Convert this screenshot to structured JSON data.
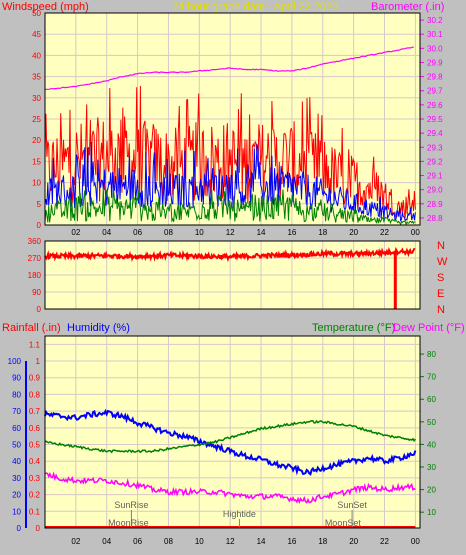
{
  "header": {
    "windspeed_label": "Windspeed (mph)",
    "title": "24 hour graph date : April 22 2020",
    "barometer_label": "Barometer (.in)"
  },
  "lower_header": {
    "rainfall_label": "Rainfall (.in)",
    "humidity_label": "Humidity (%)",
    "temperature_label": "Temperature (°F)",
    "dewpoint_label": "Dew Point (°F)"
  },
  "compass": [
    "N",
    "W",
    "S",
    "E",
    "N"
  ],
  "events": {
    "sunrise": "SunRise",
    "moonrise": "MoonRise",
    "hightide": "Hightide",
    "sunset": "SunSet",
    "moonset": "MoonSet"
  },
  "colors": {
    "plot_bg": "#ffffc0",
    "frame_bg": "#c0c0c0",
    "gust": "#ff0000",
    "wind_avg": "#0000ff",
    "wind_min": "#008000",
    "barometer": "#ff00ff",
    "rainfall": "#ff0000",
    "humidity": "#0000ff",
    "temperature": "#008000",
    "dewpoint": "#ff00ff",
    "title": "#e0e000"
  },
  "chart_data": [
    {
      "type": "line",
      "name": "wind-barometer",
      "x_ticks": [
        "02",
        "04",
        "06",
        "08",
        "10",
        "12",
        "14",
        "16",
        "18",
        "20",
        "22",
        "00"
      ],
      "y_left_ticks": [
        0,
        5,
        10,
        15,
        20,
        25,
        30,
        35,
        40,
        45,
        50
      ],
      "ylim_left": [
        0,
        50
      ],
      "y_right_ticks": [
        28.8,
        28.9,
        29.0,
        29.1,
        29.2,
        29.3,
        29.4,
        29.5,
        29.6,
        29.7,
        29.8,
        29.9,
        30.0,
        30.1,
        30.2
      ],
      "ylim_right": [
        28.75,
        30.25
      ],
      "xlim_hours": [
        0,
        24.3
      ],
      "grid": true,
      "series": [
        {
          "key": "gust",
          "axis": "left",
          "x": [
            0,
            1,
            2,
            3,
            4,
            5,
            6,
            7,
            8,
            9,
            10,
            11,
            12,
            13,
            14,
            15,
            16,
            17,
            18,
            19,
            20,
            21,
            22,
            23,
            24
          ],
          "y": [
            13,
            14,
            15,
            15,
            16,
            16,
            15,
            15,
            14,
            14,
            15,
            15,
            15,
            14,
            15,
            15,
            15,
            14,
            13,
            11,
            10,
            9,
            7,
            4,
            5
          ]
        },
        {
          "key": "wind_avg",
          "axis": "left",
          "x": [
            0,
            1,
            2,
            3,
            4,
            5,
            6,
            7,
            8,
            9,
            10,
            11,
            12,
            13,
            14,
            15,
            16,
            17,
            18,
            19,
            20,
            21,
            22,
            23,
            24
          ],
          "y": [
            7,
            8,
            8,
            9,
            9,
            9,
            9,
            8,
            8,
            8,
            9,
            9,
            9,
            8,
            9,
            9,
            9,
            8,
            7,
            6,
            5,
            4,
            3,
            2,
            2
          ]
        },
        {
          "key": "wind_min",
          "axis": "left",
          "x": [
            0,
            1,
            2,
            3,
            4,
            5,
            6,
            7,
            8,
            9,
            10,
            11,
            12,
            13,
            14,
            15,
            16,
            17,
            18,
            19,
            20,
            21,
            22,
            23,
            24
          ],
          "y": [
            3,
            3,
            4,
            4,
            4,
            4,
            4,
            3,
            3,
            3,
            4,
            4,
            4,
            3,
            4,
            4,
            4,
            3,
            3,
            2,
            2,
            1,
            1,
            0.5,
            0.5
          ]
        },
        {
          "key": "barometer",
          "axis": "right",
          "x": [
            0,
            1,
            2,
            3,
            4,
            5,
            6,
            7,
            8,
            9,
            10,
            11,
            12,
            13,
            14,
            15,
            16,
            17,
            18,
            19,
            20,
            21,
            22,
            23,
            24
          ],
          "y": [
            29.71,
            29.72,
            29.73,
            29.75,
            29.77,
            29.8,
            29.82,
            29.83,
            29.83,
            29.83,
            29.84,
            29.85,
            29.86,
            29.85,
            29.85,
            29.84,
            29.84,
            29.86,
            29.89,
            29.91,
            29.93,
            29.95,
            29.97,
            29.99,
            30.01
          ]
        }
      ]
    },
    {
      "type": "line",
      "name": "wind-direction",
      "x_ticks": [
        "02",
        "04",
        "06",
        "08",
        "10",
        "12",
        "14",
        "16",
        "18",
        "20",
        "22",
        "00"
      ],
      "y_ticks": [
        0,
        90,
        180,
        270,
        360
      ],
      "ylim": [
        0,
        360
      ],
      "xlim_hours": [
        0,
        24.3
      ],
      "grid": true,
      "series": [
        {
          "key": "direction",
          "x": [
            0,
            2,
            4,
            6,
            8,
            10,
            12,
            14,
            16,
            18,
            20,
            22,
            23,
            23.7,
            24
          ],
          "y": [
            280,
            280,
            282,
            278,
            284,
            280,
            276,
            282,
            286,
            292,
            292,
            298,
            306,
            300,
            320
          ]
        }
      ],
      "spike": {
        "x": 22.7,
        "y": 0
      }
    },
    {
      "type": "line",
      "name": "humidity-temperature",
      "x_ticks": [
        "02",
        "04",
        "06",
        "08",
        "10",
        "12",
        "14",
        "16",
        "18",
        "20",
        "22",
        "00"
      ],
      "y_left_ticks": [
        0,
        0.1,
        0.2,
        0.3,
        0.4,
        0.5,
        0.6,
        0.7,
        0.8,
        0.9,
        1.0,
        1.1
      ],
      "y_humidity_ticks": [
        0,
        10,
        20,
        30,
        40,
        50,
        60,
        70,
        80,
        90,
        100
      ],
      "ylim_humidity": [
        0,
        115
      ],
      "y_right_ticks": [
        10,
        20,
        30,
        40,
        50,
        60,
        70,
        80
      ],
      "ylim_right": [
        3,
        88
      ],
      "xlim_hours": [
        0,
        24.3
      ],
      "grid": true,
      "series": [
        {
          "key": "humidity",
          "axis": "humidity",
          "x": [
            0,
            1,
            2,
            3,
            4,
            5,
            6,
            7,
            8,
            9,
            10,
            11,
            12,
            13,
            14,
            15,
            16,
            17,
            18,
            19,
            20,
            21,
            22,
            23,
            24
          ],
          "y": [
            68,
            67,
            66,
            68,
            69,
            67,
            63,
            60,
            57,
            55,
            52,
            49,
            46,
            43,
            41,
            38,
            36,
            33,
            36,
            38,
            40,
            42,
            40,
            42,
            45
          ]
        },
        {
          "key": "temperature",
          "axis": "right",
          "x": [
            0,
            1,
            2,
            3,
            4,
            5,
            6,
            7,
            8,
            9,
            10,
            11,
            12,
            13,
            14,
            15,
            16,
            17,
            18,
            19,
            20,
            21,
            22,
            23,
            24
          ],
          "y": [
            41,
            40,
            39,
            38,
            37,
            37,
            37,
            37,
            38,
            39,
            40,
            41,
            43,
            45,
            47,
            48,
            49,
            50,
            50,
            49,
            48,
            46,
            44,
            43,
            42
          ]
        },
        {
          "key": "dewpoint",
          "axis": "right",
          "x": [
            0,
            1,
            2,
            3,
            4,
            5,
            6,
            7,
            8,
            9,
            10,
            11,
            12,
            13,
            14,
            15,
            16,
            17,
            18,
            19,
            20,
            21,
            22,
            23,
            24
          ],
          "y": [
            27,
            25,
            24,
            24,
            24,
            23,
            22,
            20,
            19,
            19,
            19,
            19,
            18,
            17,
            17,
            17,
            16,
            15,
            17,
            18,
            20,
            21,
            20,
            21,
            21
          ]
        },
        {
          "key": "rainfall",
          "axis": "rain",
          "x": [
            0,
            24
          ],
          "y": [
            0,
            0
          ]
        }
      ],
      "events": [
        {
          "key": "sunrise",
          "hour": 5.6,
          "row": "upper"
        },
        {
          "key": "moonrise",
          "hour": 5.4,
          "row": "lower"
        },
        {
          "key": "hightide",
          "hour": 12.6,
          "row": "middle"
        },
        {
          "key": "sunset",
          "hour": 19.9,
          "row": "upper"
        },
        {
          "key": "moonset",
          "hour": 19.3,
          "row": "lower"
        }
      ]
    }
  ]
}
